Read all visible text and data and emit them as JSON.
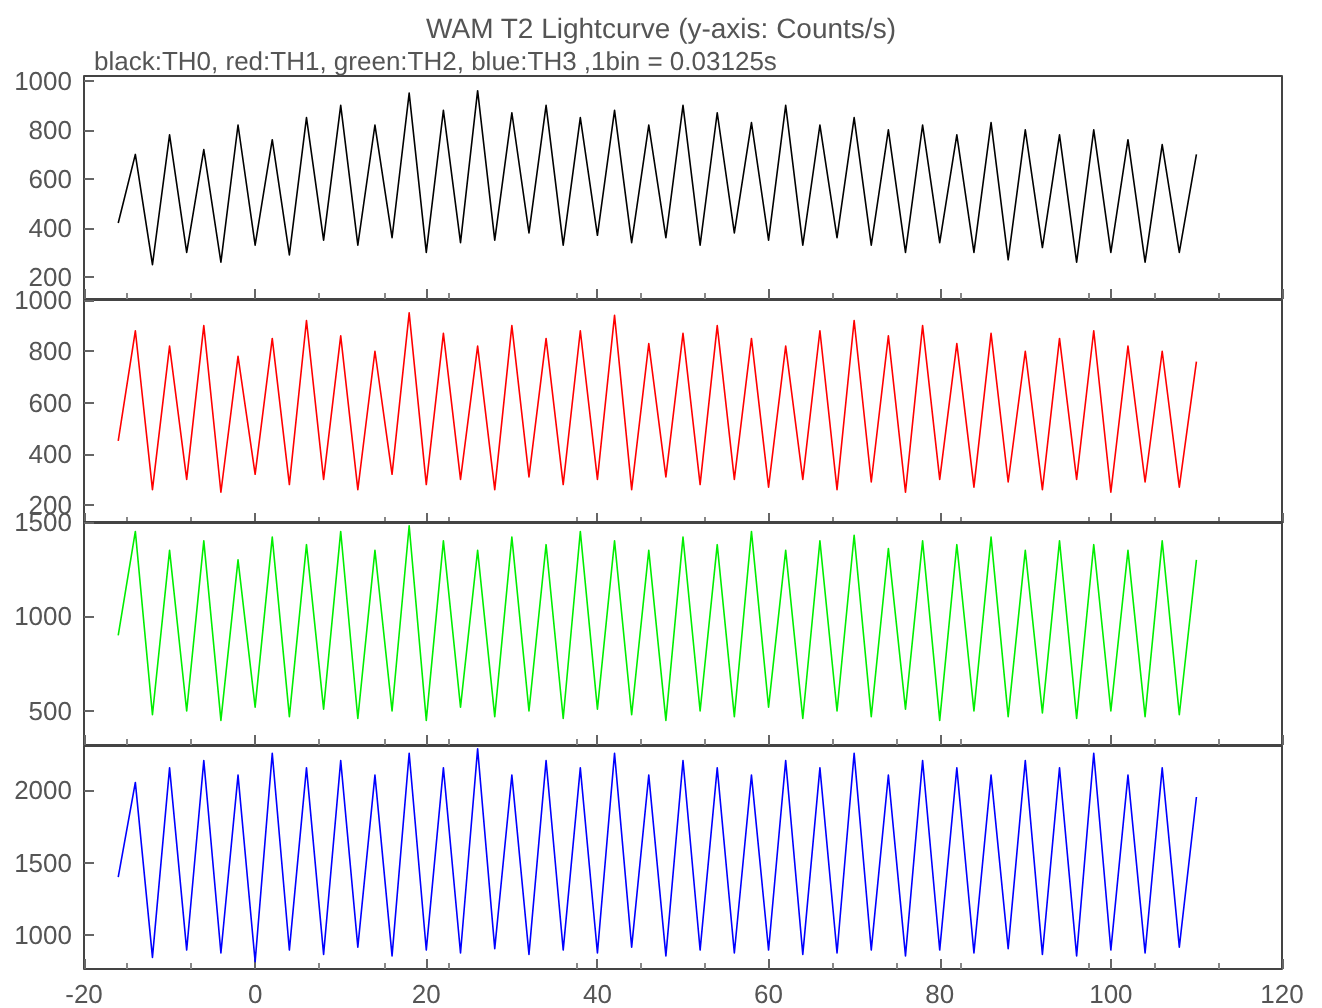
{
  "chart_data": [
    {
      "type": "line",
      "title": "WAM T2 Lightcurve (y-axis: Counts/s)",
      "subtitle": "black:TH0, red:TH1, green:TH2, blue:TH3 ,1bin = 0.03125s",
      "tick_labels": "y",
      "xlim": [
        -20,
        120
      ],
      "xticks": [
        -20,
        0,
        20,
        40,
        60,
        80,
        100,
        120
      ],
      "ylim": [
        110,
        1020
      ],
      "yticks": [
        200,
        400,
        600,
        800,
        1000
      ],
      "marker": "none",
      "x": [
        -16,
        -14,
        -12,
        -10,
        -8,
        -6,
        -4,
        -2,
        0,
        2,
        4,
        6,
        8,
        10,
        12,
        14,
        16,
        18,
        20,
        22,
        24,
        26,
        28,
        30,
        32,
        34,
        36,
        38,
        40,
        42,
        44,
        46,
        48,
        50,
        52,
        54,
        56,
        58,
        60,
        62,
        64,
        66,
        68,
        70,
        72,
        74,
        76,
        78,
        80,
        82,
        84,
        86,
        88,
        90,
        92,
        94,
        96,
        98,
        100,
        102,
        104,
        106,
        108,
        110
      ],
      "series": [
        {
          "color": "#000000",
          "values": [
            420,
            700,
            250,
            780,
            300,
            720,
            260,
            820,
            330,
            760,
            290,
            850,
            350,
            900,
            330,
            820,
            360,
            950,
            300,
            880,
            340,
            960,
            350,
            870,
            380,
            900,
            330,
            850,
            370,
            880,
            340,
            820,
            360,
            900,
            330,
            870,
            380,
            830,
            350,
            900,
            330,
            820,
            360,
            850,
            330,
            800,
            300,
            820,
            340,
            780,
            300,
            830,
            270,
            800,
            320,
            780,
            260,
            800,
            300,
            760,
            260,
            740,
            300,
            700
          ]
        }
      ]
    },
    {
      "type": "line",
      "tick_labels": "y",
      "xlim": [
        -20,
        120
      ],
      "xticks": [
        -20,
        0,
        20,
        40,
        60,
        80,
        100,
        120
      ],
      "ylim": [
        130,
        1000
      ],
      "yticks": [
        200,
        400,
        600,
        800,
        1000
      ],
      "marker": "none",
      "x": [
        -16,
        -14,
        -12,
        -10,
        -8,
        -6,
        -4,
        -2,
        0,
        2,
        4,
        6,
        8,
        10,
        12,
        14,
        16,
        18,
        20,
        22,
        24,
        26,
        28,
        30,
        32,
        34,
        36,
        38,
        40,
        42,
        44,
        46,
        48,
        50,
        52,
        54,
        56,
        58,
        60,
        62,
        64,
        66,
        68,
        70,
        72,
        74,
        76,
        78,
        80,
        82,
        84,
        86,
        88,
        90,
        92,
        94,
        96,
        98,
        100,
        102,
        104,
        106,
        108,
        110
      ],
      "series": [
        {
          "color": "#ff0000",
          "values": [
            450,
            880,
            260,
            820,
            300,
            900,
            250,
            780,
            320,
            850,
            280,
            920,
            300,
            860,
            260,
            800,
            320,
            950,
            280,
            870,
            300,
            820,
            260,
            900,
            310,
            850,
            280,
            880,
            300,
            940,
            260,
            830,
            310,
            870,
            280,
            900,
            300,
            850,
            270,
            820,
            300,
            880,
            260,
            920,
            290,
            860,
            250,
            900,
            300,
            830,
            270,
            870,
            290,
            800,
            260,
            850,
            300,
            880,
            250,
            820,
            290,
            800,
            270,
            760
          ]
        }
      ]
    },
    {
      "type": "line",
      "tick_labels": "y",
      "xlim": [
        -20,
        120
      ],
      "xticks": [
        -20,
        0,
        20,
        40,
        60,
        80,
        100,
        120
      ],
      "ylim": [
        320,
        1500
      ],
      "yticks": [
        500,
        1000,
        1500
      ],
      "marker": "none",
      "x": [
        -16,
        -14,
        -12,
        -10,
        -8,
        -6,
        -4,
        -2,
        0,
        2,
        4,
        6,
        8,
        10,
        12,
        14,
        16,
        18,
        20,
        22,
        24,
        26,
        28,
        30,
        32,
        34,
        36,
        38,
        40,
        42,
        44,
        46,
        48,
        50,
        52,
        54,
        56,
        58,
        60,
        62,
        64,
        66,
        68,
        70,
        72,
        74,
        76,
        78,
        80,
        82,
        84,
        86,
        88,
        90,
        92,
        94,
        96,
        98,
        100,
        102,
        104,
        106,
        108,
        110
      ],
      "series": [
        {
          "color": "#00ee00",
          "values": [
            900,
            1450,
            480,
            1350,
            500,
            1400,
            450,
            1300,
            520,
            1420,
            470,
            1380,
            510,
            1450,
            460,
            1350,
            500,
            1480,
            450,
            1400,
            520,
            1350,
            470,
            1420,
            500,
            1380,
            460,
            1450,
            510,
            1400,
            480,
            1350,
            450,
            1420,
            500,
            1380,
            470,
            1450,
            520,
            1350,
            460,
            1400,
            500,
            1430,
            470,
            1360,
            510,
            1400,
            450,
            1380,
            500,
            1420,
            470,
            1350,
            490,
            1400,
            460,
            1380,
            500,
            1350,
            470,
            1400,
            480,
            1300
          ]
        }
      ]
    },
    {
      "type": "line",
      "xlim": [
        -20,
        120
      ],
      "xticks": [
        -20,
        0,
        20,
        40,
        60,
        80,
        100,
        120
      ],
      "ylim": [
        770,
        2300
      ],
      "yticks": [
        1000,
        1500,
        2000
      ],
      "marker": "none",
      "x": [
        -16,
        -14,
        -12,
        -10,
        -8,
        -6,
        -4,
        -2,
        0,
        2,
        4,
        6,
        8,
        10,
        12,
        14,
        16,
        18,
        20,
        22,
        24,
        26,
        28,
        30,
        32,
        34,
        36,
        38,
        40,
        42,
        44,
        46,
        48,
        50,
        52,
        54,
        56,
        58,
        60,
        62,
        64,
        66,
        68,
        70,
        72,
        74,
        76,
        78,
        80,
        82,
        84,
        86,
        88,
        90,
        92,
        94,
        96,
        98,
        100,
        102,
        104,
        106,
        108,
        110
      ],
      "series": [
        {
          "color": "#0000ff",
          "values": [
            1400,
            2050,
            850,
            2150,
            900,
            2200,
            880,
            2100,
            820,
            2250,
            900,
            2150,
            870,
            2200,
            920,
            2100,
            860,
            2250,
            900,
            2150,
            880,
            2280,
            910,
            2100,
            870,
            2200,
            900,
            2150,
            880,
            2250,
            920,
            2100,
            860,
            2200,
            900,
            2150,
            880,
            2100,
            900,
            2200,
            870,
            2150,
            880,
            2250,
            900,
            2100,
            860,
            2200,
            900,
            2150,
            880,
            2100,
            910,
            2200,
            870,
            2150,
            860,
            2250,
            900,
            2100,
            880,
            2150,
            920,
            1950
          ]
        }
      ]
    }
  ]
}
